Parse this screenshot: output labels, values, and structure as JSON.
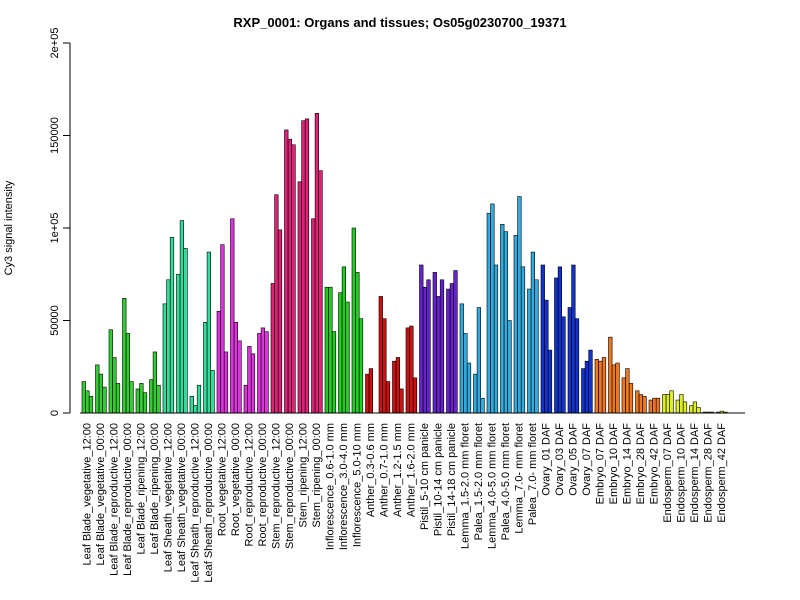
{
  "chart_data": {
    "type": "bar",
    "title": "RXP_0001: Organs and tissues; Os05g0230700_19371",
    "ylabel": "Cy3 signal intensity",
    "xlabel": "",
    "ylim": [
      0,
      200000
    ],
    "yticks": [
      {
        "value": 0,
        "label": "0"
      },
      {
        "value": 50000,
        "label": "50000"
      },
      {
        "value": 100000,
        "label": "1e+05"
      },
      {
        "value": 150000,
        "label": "150000"
      },
      {
        "value": 200000,
        "label": "2e+05"
      }
    ],
    "groups": [
      {
        "label": "Leaf Blade_vegetative_12:00",
        "color": "#33cc33",
        "values": [
          17000,
          12000,
          9000
        ]
      },
      {
        "label": "Leaf Blade_vegetative_00:00",
        "color": "#33cc33",
        "values": [
          26000,
          21000,
          14000
        ]
      },
      {
        "label": "Leaf Blade_reproductive_12:00",
        "color": "#33cc33",
        "values": [
          45000,
          30000,
          16000
        ]
      },
      {
        "label": "Leaf Blade_reproductive_00:00",
        "color": "#33cc33",
        "values": [
          62000,
          43000,
          17000
        ]
      },
      {
        "label": "Leaf Blade_ripening_12:00",
        "color": "#33cc33",
        "values": [
          13000,
          16000,
          11000
        ]
      },
      {
        "label": "Leaf Blade_ripening_00:00",
        "color": "#33cc33",
        "values": [
          18000,
          33000,
          15000
        ]
      },
      {
        "label": "Leaf Sheath_vegetative_12:00",
        "color": "#33dd99",
        "values": [
          59000,
          72000,
          95000
        ]
      },
      {
        "label": "Leaf Sheath_vegetative_00:00",
        "color": "#33dd99",
        "values": [
          75000,
          104000,
          89000
        ]
      },
      {
        "label": "Leaf Sheath_reproductive_12:00",
        "color": "#33dd99",
        "values": [
          9000,
          4000,
          15000
        ]
      },
      {
        "label": "Leaf Sheath_reproductive_00:00",
        "color": "#33dd99",
        "values": [
          49000,
          87000,
          23000
        ]
      },
      {
        "label": "Root_vegetative_12:00",
        "color": "#dd33dd",
        "values": [
          55000,
          91000,
          33000
        ]
      },
      {
        "label": "Root_vegetative_00:00",
        "color": "#dd33dd",
        "values": [
          105000,
          49000,
          39000
        ]
      },
      {
        "label": "Root_reproductive_12:00",
        "color": "#dd33dd",
        "values": [
          15000,
          36000,
          32000
        ]
      },
      {
        "label": "Root_reproductive_00:00",
        "color": "#dd33dd",
        "values": [
          43000,
          46000,
          44000
        ]
      },
      {
        "label": "Stem_reproductive_12:00",
        "color": "#dd2277",
        "values": [
          70000,
          118000,
          99000
        ]
      },
      {
        "label": "Stem_reproductive_00:00",
        "color": "#dd2277",
        "values": [
          153000,
          148000,
          145000
        ]
      },
      {
        "label": "Stem_ripening_12:00",
        "color": "#dd2277",
        "values": [
          125000,
          158000,
          159000
        ]
      },
      {
        "label": "Stem_ripening_00:00",
        "color": "#dd2277",
        "values": [
          105000,
          162000,
          131000
        ]
      },
      {
        "label": "Inflorescence_0.6-1.0 mm",
        "color": "#22cc22",
        "values": [
          68000,
          68000,
          44000
        ]
      },
      {
        "label": "Inflorescence_3.0-4.0 mm",
        "color": "#22cc22",
        "values": [
          65000,
          79000,
          60000
        ]
      },
      {
        "label": "Inflorescence_5.0-10 mm",
        "color": "#22cc22",
        "values": [
          100000,
          76000,
          51000
        ]
      },
      {
        "label": "Anther_0.3-0.6 mm",
        "color": "#cc1111",
        "values": [
          21000,
          24000,
          0
        ]
      },
      {
        "label": "Anther_0.7-1.0 mm",
        "color": "#cc1111",
        "values": [
          63000,
          51000,
          17000
        ]
      },
      {
        "label": "Anther_1.2-1.5 mm",
        "color": "#cc1111",
        "values": [
          28000,
          30000,
          13000
        ]
      },
      {
        "label": "Anther_1.6-2.0 mm",
        "color": "#cc1111",
        "values": [
          46000,
          47000,
          19000
        ]
      },
      {
        "label": "Pistil_5-10 cm panicle",
        "color": "#6622cc",
        "values": [
          80000,
          68000,
          72000
        ]
      },
      {
        "label": "Pistil_10-14 cm panicle",
        "color": "#6622cc",
        "values": [
          76000,
          63000,
          72000
        ]
      },
      {
        "label": "Pistil_14-18 cm panicle",
        "color": "#6622cc",
        "values": [
          67000,
          70000,
          77000
        ]
      },
      {
        "label": "Lemma_1.5-2.0 mm floret",
        "color": "#33aadd",
        "values": [
          59000,
          43000,
          27000
        ]
      },
      {
        "label": "Palea_1.5-2.0 mm floret",
        "color": "#33aadd",
        "values": [
          21000,
          57000,
          8000
        ]
      },
      {
        "label": "Lemma_4.0-5.0 mm floret",
        "color": "#33aadd",
        "values": [
          108000,
          113000,
          80000
        ]
      },
      {
        "label": "Palea_4.0-5.0 mm floret",
        "color": "#33aadd",
        "values": [
          102000,
          98000,
          50000
        ]
      },
      {
        "label": "Lemma_7.0- mm floret",
        "color": "#33aadd",
        "values": [
          96000,
          117000,
          79000
        ]
      },
      {
        "label": "Palea_7.0- mm floret",
        "color": "#33aadd",
        "values": [
          67000,
          87000,
          72000
        ]
      },
      {
        "label": "Ovary_01 DAF",
        "color": "#1133cc",
        "values": [
          80000,
          61000,
          34000
        ]
      },
      {
        "label": "Ovary_03 DAF",
        "color": "#1133cc",
        "values": [
          73000,
          79000,
          52000
        ]
      },
      {
        "label": "Ovary_05 DAF",
        "color": "#1133cc",
        "values": [
          57000,
          80000,
          51000
        ]
      },
      {
        "label": "Ovary_07 DAF",
        "color": "#1133cc",
        "values": [
          24000,
          28000,
          34000
        ]
      },
      {
        "label": "Embryo_07 DAF",
        "color": "#ee7722",
        "values": [
          29000,
          28000,
          30000
        ]
      },
      {
        "label": "Embryo_10 DAF",
        "color": "#ee7722",
        "values": [
          41000,
          26000,
          27000
        ]
      },
      {
        "label": "Embryo_14 DAF",
        "color": "#ee7722",
        "values": [
          19000,
          24000,
          16000
        ]
      },
      {
        "label": "Embryo_28 DAF",
        "color": "#ee7722",
        "values": [
          12000,
          10000,
          9000
        ]
      },
      {
        "label": "Embryo_42 DAF",
        "color": "#ee7722",
        "values": [
          7000,
          8000,
          8000
        ]
      },
      {
        "label": "Endosperm_07 DAF",
        "color": "#ddee22",
        "values": [
          10000,
          10000,
          12000
        ]
      },
      {
        "label": "Endosperm_10 DAF",
        "color": "#ddee22",
        "values": [
          7000,
          10000,
          6000
        ]
      },
      {
        "label": "Endosperm_14 DAF",
        "color": "#ddee22",
        "values": [
          4000,
          6000,
          3000
        ]
      },
      {
        "label": "Endosperm_28 DAF",
        "color": "#ddee22",
        "values": [
          500,
          500,
          500
        ]
      },
      {
        "label": "Endosperm_42 DAF",
        "color": "#ddee22",
        "values": [
          500,
          1000,
          500
        ]
      }
    ]
  }
}
